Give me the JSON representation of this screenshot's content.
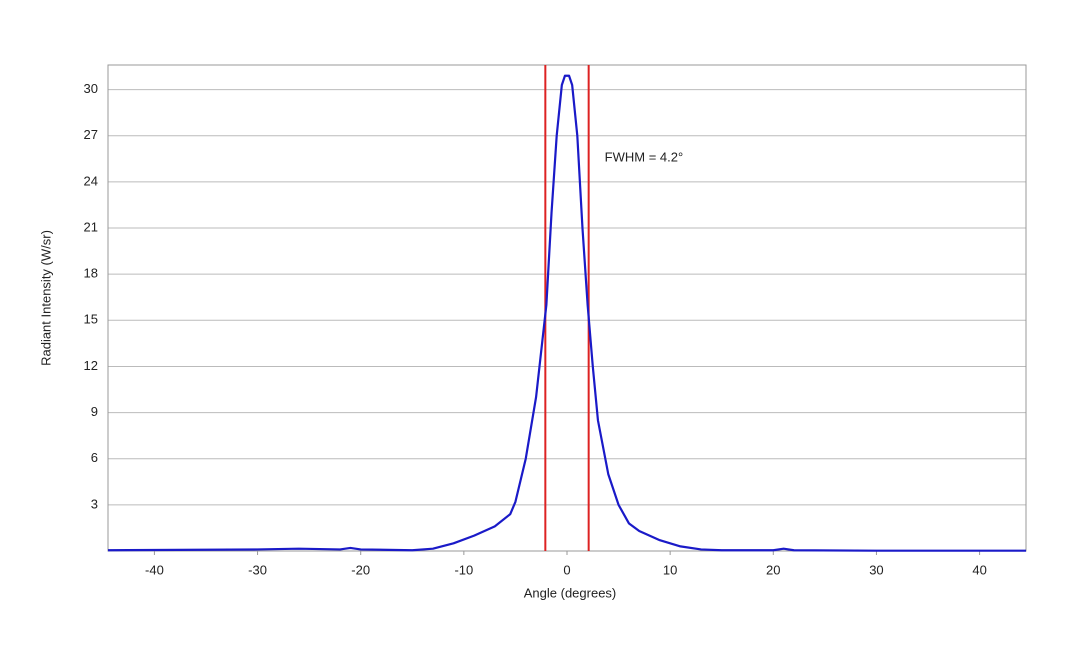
{
  "chart_data": {
    "type": "line",
    "x_label": "Angle (degrees)",
    "y_label": "Radiant Intensity (W/sr)",
    "annotation": "FWHM = 4.2°",
    "markers": [
      -2.1,
      2.1
    ],
    "marker_color": "#dd2222",
    "x": [
      -44.5,
      -30,
      -26,
      -22,
      -21,
      -20,
      -15,
      -13,
      -11,
      -9,
      -7,
      -5.5,
      -5,
      -4,
      -3,
      -2,
      -1.5,
      -1,
      -0.5,
      -0.2,
      0.2,
      0.5,
      1,
      1.5,
      2,
      2.5,
      3,
      4,
      5,
      6,
      7,
      9,
      11,
      13,
      15,
      20,
      21,
      22,
      30,
      44.5
    ],
    "series": [
      {
        "name": "Radiant Intensity",
        "color": "#1a1ac8",
        "values": [
          0.05,
          0.1,
          0.15,
          0.1,
          0.2,
          0.1,
          0.05,
          0.15,
          0.5,
          1.0,
          1.6,
          2.4,
          3.2,
          6,
          10,
          16,
          22,
          27,
          30.3,
          30.9,
          30.9,
          30.3,
          27,
          21,
          16,
          12,
          8.5,
          5,
          3,
          1.8,
          1.3,
          0.7,
          0.3,
          0.1,
          0.05,
          0.05,
          0.15,
          0.05,
          0.02,
          0.02
        ]
      }
    ],
    "xlim": [
      -44.5,
      44.5
    ],
    "ylim": [
      0,
      31.6
    ],
    "xticks": [
      -40,
      -30,
      -20,
      -10,
      0,
      10,
      20,
      30,
      40
    ],
    "yticks": [
      3,
      6,
      9,
      12,
      15,
      18,
      21,
      24,
      27,
      30
    ],
    "grid": true
  }
}
